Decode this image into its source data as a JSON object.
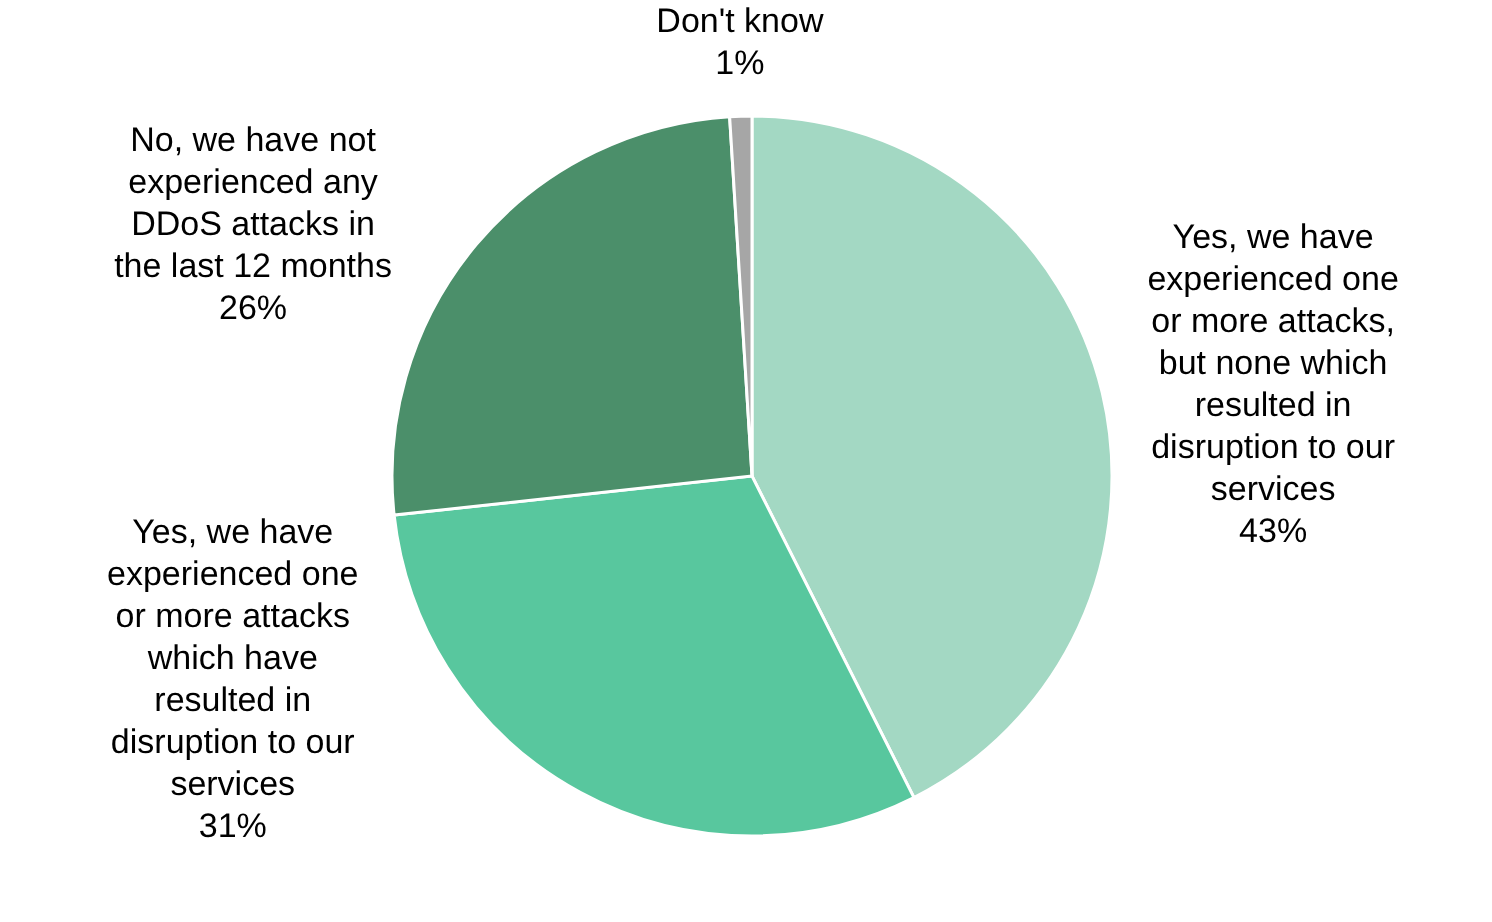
{
  "chart_data": {
    "type": "pie",
    "categories": [
      "Yes, we have experienced one or more attacks, but none which resulted in disruption to our services",
      "Yes, we have experienced one or more attacks which have resulted in disruption to our services",
      "No, we have not experienced any DDoS attacks in the last 12 months",
      "Don't know"
    ],
    "values": [
      43,
      31,
      26,
      1
    ],
    "value_labels": [
      "43%",
      "31%",
      "26%",
      "1%"
    ],
    "colors": [
      "#a3d8c3",
      "#58c79e",
      "#4b8f6a",
      "#a6a6a6"
    ]
  }
}
